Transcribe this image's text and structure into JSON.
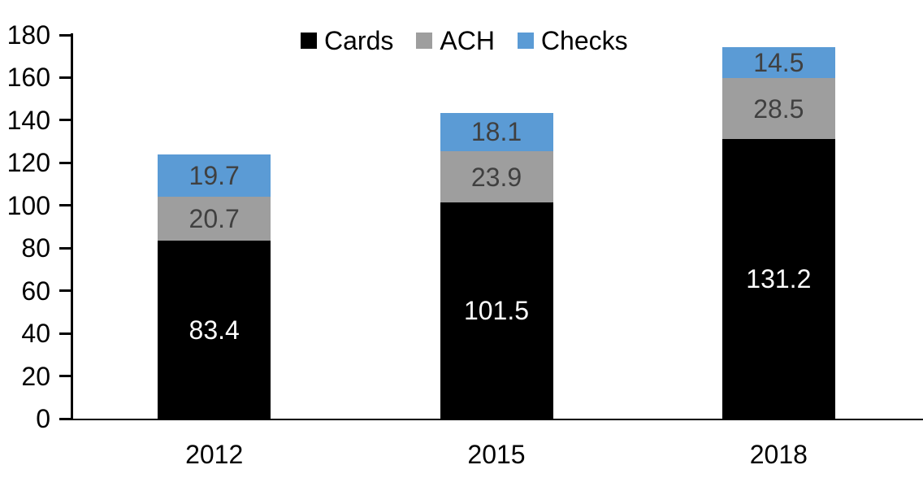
{
  "chart_data": {
    "type": "bar",
    "subtype": "stacked-column",
    "title": "",
    "xlabel": "",
    "ylabel": "",
    "categories": [
      "2012",
      "2015",
      "2018"
    ],
    "series": [
      {
        "name": "Cards",
        "color": "#000000",
        "label_color": "#ffffff",
        "values": [
          83.4,
          101.5,
          131.2
        ]
      },
      {
        "name": "ACH",
        "color": "#9e9e9e",
        "label_color": "#404040",
        "values": [
          20.7,
          23.9,
          28.5
        ]
      },
      {
        "name": "Checks",
        "color": "#5b9bd5",
        "label_color": "#404040",
        "values": [
          19.7,
          18.1,
          14.5
        ]
      }
    ],
    "segment_labels": [
      [
        "83.4",
        "101.5",
        "131.2"
      ],
      [
        "20.7",
        "23.9",
        "28.5"
      ],
      [
        "19.7",
        "18.1",
        "14.5"
      ]
    ],
    "ylim": [
      0,
      180
    ],
    "yticks": [
      0,
      20,
      40,
      60,
      80,
      100,
      120,
      140,
      160,
      180
    ],
    "grid": false,
    "legend_position": "top",
    "axis_color": "#000000",
    "background_color": "#ffffff"
  }
}
